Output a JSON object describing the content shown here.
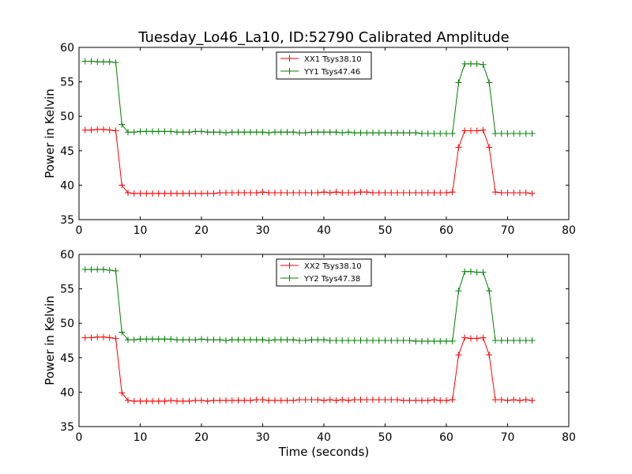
{
  "chart_data": [
    {
      "type": "line",
      "title": "Tuesday_Lo46_La10, ID:52790 Calibrated Amplitude",
      "xlabel": "",
      "ylabel": "Power in Kelvin",
      "xlim": [
        0,
        80
      ],
      "ylim": [
        35,
        60
      ],
      "xticks": [
        "0",
        "10",
        "20",
        "30",
        "40",
        "50",
        "60",
        "70",
        "80"
      ],
      "yticks": [
        "35",
        "40",
        "45",
        "50",
        "55",
        "60"
      ],
      "grid": false,
      "legend_position": "top-center",
      "x": [
        1,
        2,
        3,
        4,
        5,
        6,
        7,
        8,
        9,
        10,
        11,
        12,
        13,
        14,
        15,
        16,
        17,
        18,
        19,
        20,
        21,
        22,
        23,
        24,
        25,
        26,
        27,
        28,
        29,
        30,
        31,
        32,
        33,
        34,
        35,
        36,
        37,
        38,
        39,
        40,
        41,
        42,
        43,
        44,
        45,
        46,
        47,
        48,
        49,
        50,
        51,
        52,
        53,
        54,
        55,
        56,
        57,
        58,
        59,
        60,
        61,
        62,
        63,
        64,
        65,
        66,
        67,
        68,
        69,
        70,
        71,
        72,
        73,
        74
      ],
      "series": [
        {
          "name": "XX1 Tsys38.10",
          "color": "#ff0000",
          "values": [
            48.0,
            48.0,
            48.1,
            48.1,
            48.0,
            47.9,
            40.0,
            38.9,
            38.8,
            38.8,
            38.8,
            38.8,
            38.8,
            38.8,
            38.8,
            38.8,
            38.8,
            38.8,
            38.8,
            38.8,
            38.8,
            38.8,
            38.9,
            38.9,
            38.9,
            38.9,
            38.9,
            38.9,
            38.9,
            39.0,
            38.9,
            38.9,
            38.9,
            38.9,
            38.9,
            38.9,
            38.9,
            38.9,
            38.9,
            39.0,
            38.9,
            39.0,
            38.9,
            38.9,
            38.9,
            39.0,
            39.0,
            38.9,
            38.9,
            38.9,
            38.9,
            38.9,
            38.9,
            38.9,
            38.9,
            38.9,
            38.9,
            38.9,
            38.9,
            38.9,
            39.0,
            45.5,
            47.9,
            47.9,
            47.9,
            48.0,
            45.5,
            39.0,
            38.9,
            38.9,
            38.9,
            38.9,
            38.9,
            38.8
          ]
        },
        {
          "name": "YY1 Tsys47.46",
          "color": "#008000",
          "values": [
            58.0,
            58.0,
            57.9,
            57.9,
            57.9,
            57.8,
            48.8,
            47.7,
            47.7,
            47.8,
            47.8,
            47.8,
            47.8,
            47.8,
            47.8,
            47.7,
            47.7,
            47.7,
            47.8,
            47.8,
            47.7,
            47.7,
            47.7,
            47.6,
            47.7,
            47.7,
            47.7,
            47.7,
            47.7,
            47.7,
            47.6,
            47.7,
            47.7,
            47.7,
            47.7,
            47.6,
            47.6,
            47.7,
            47.7,
            47.7,
            47.7,
            47.7,
            47.6,
            47.7,
            47.6,
            47.6,
            47.6,
            47.6,
            47.6,
            47.6,
            47.6,
            47.6,
            47.6,
            47.6,
            47.6,
            47.5,
            47.5,
            47.5,
            47.5,
            47.5,
            47.5,
            54.9,
            57.6,
            57.6,
            57.6,
            57.5,
            54.9,
            47.5,
            47.5,
            47.5,
            47.5,
            47.5,
            47.5,
            47.5
          ]
        }
      ]
    },
    {
      "type": "line",
      "title": "",
      "xlabel": "Time (seconds)",
      "ylabel": "Power in Kelvin",
      "xlim": [
        0,
        80
      ],
      "ylim": [
        35,
        60
      ],
      "xticks": [
        "0",
        "10",
        "20",
        "30",
        "40",
        "50",
        "60",
        "70",
        "80"
      ],
      "yticks": [
        "35",
        "40",
        "45",
        "50",
        "55",
        "60"
      ],
      "grid": false,
      "legend_position": "top-center",
      "x": [
        1,
        2,
        3,
        4,
        5,
        6,
        7,
        8,
        9,
        10,
        11,
        12,
        13,
        14,
        15,
        16,
        17,
        18,
        19,
        20,
        21,
        22,
        23,
        24,
        25,
        26,
        27,
        28,
        29,
        30,
        31,
        32,
        33,
        34,
        35,
        36,
        37,
        38,
        39,
        40,
        41,
        42,
        43,
        44,
        45,
        46,
        47,
        48,
        49,
        50,
        51,
        52,
        53,
        54,
        55,
        56,
        57,
        58,
        59,
        60,
        61,
        62,
        63,
        64,
        65,
        66,
        67,
        68,
        69,
        70,
        71,
        72,
        73,
        74
      ],
      "series": [
        {
          "name": "XX2 Tsys38.10",
          "color": "#ff0000",
          "values": [
            47.9,
            47.9,
            48.0,
            48.0,
            47.9,
            47.8,
            39.9,
            38.8,
            38.7,
            38.7,
            38.7,
            38.7,
            38.7,
            38.7,
            38.8,
            38.7,
            38.7,
            38.7,
            38.8,
            38.8,
            38.7,
            38.8,
            38.8,
            38.8,
            38.8,
            38.8,
            38.8,
            38.8,
            38.9,
            38.9,
            38.8,
            38.8,
            38.8,
            38.8,
            38.8,
            38.9,
            38.9,
            38.9,
            38.9,
            38.8,
            38.9,
            38.8,
            38.9,
            38.8,
            38.9,
            38.9,
            38.9,
            38.9,
            38.9,
            38.9,
            38.9,
            38.9,
            38.8,
            38.8,
            38.8,
            38.8,
            38.8,
            38.9,
            38.8,
            38.8,
            38.9,
            45.4,
            47.9,
            47.8,
            47.8,
            47.9,
            45.4,
            38.9,
            38.9,
            38.8,
            38.9,
            38.8,
            38.9,
            38.8
          ]
        },
        {
          "name": "YY2 Tsys47.38",
          "color": "#008000",
          "values": [
            57.8,
            57.8,
            57.8,
            57.8,
            57.7,
            57.6,
            48.7,
            47.6,
            47.6,
            47.7,
            47.7,
            47.7,
            47.7,
            47.7,
            47.7,
            47.6,
            47.6,
            47.6,
            47.6,
            47.7,
            47.6,
            47.6,
            47.6,
            47.5,
            47.6,
            47.6,
            47.6,
            47.6,
            47.6,
            47.6,
            47.5,
            47.6,
            47.6,
            47.6,
            47.6,
            47.5,
            47.5,
            47.6,
            47.6,
            47.6,
            47.5,
            47.5,
            47.5,
            47.5,
            47.5,
            47.5,
            47.5,
            47.5,
            47.5,
            47.5,
            47.5,
            47.5,
            47.5,
            47.5,
            47.4,
            47.4,
            47.4,
            47.4,
            47.4,
            47.4,
            47.4,
            54.7,
            57.5,
            57.5,
            57.4,
            57.4,
            54.7,
            47.5,
            47.5,
            47.5,
            47.5,
            47.5,
            47.5,
            47.5
          ]
        }
      ]
    }
  ]
}
